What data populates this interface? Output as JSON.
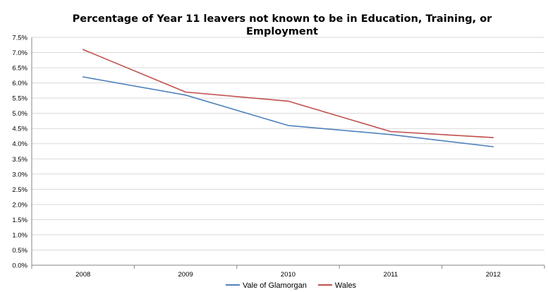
{
  "chart_data": {
    "type": "line",
    "title": "Percentage of Year 11 leavers not known to be in Education, Training, or Employment",
    "title_lines": [
      "Percentage of Year 11 leavers not known to be in Education, Training, or",
      "Employment"
    ],
    "xlabel": "",
    "ylabel": "",
    "categories": [
      "2008",
      "2009",
      "2010",
      "2011",
      "2012"
    ],
    "ylim": [
      0,
      7.5
    ],
    "ytick_step": 0.5,
    "y_format": "percent_1dp",
    "grid": true,
    "legend_position": "bottom",
    "series": [
      {
        "name": "Vale of Glamorgan",
        "color": "#4f81bd",
        "values": [
          6.2,
          5.6,
          4.6,
          4.3,
          3.9
        ]
      },
      {
        "name": "Wales",
        "color": "#c0504d",
        "values": [
          7.1,
          5.7,
          5.4,
          4.4,
          4.2
        ]
      }
    ]
  }
}
